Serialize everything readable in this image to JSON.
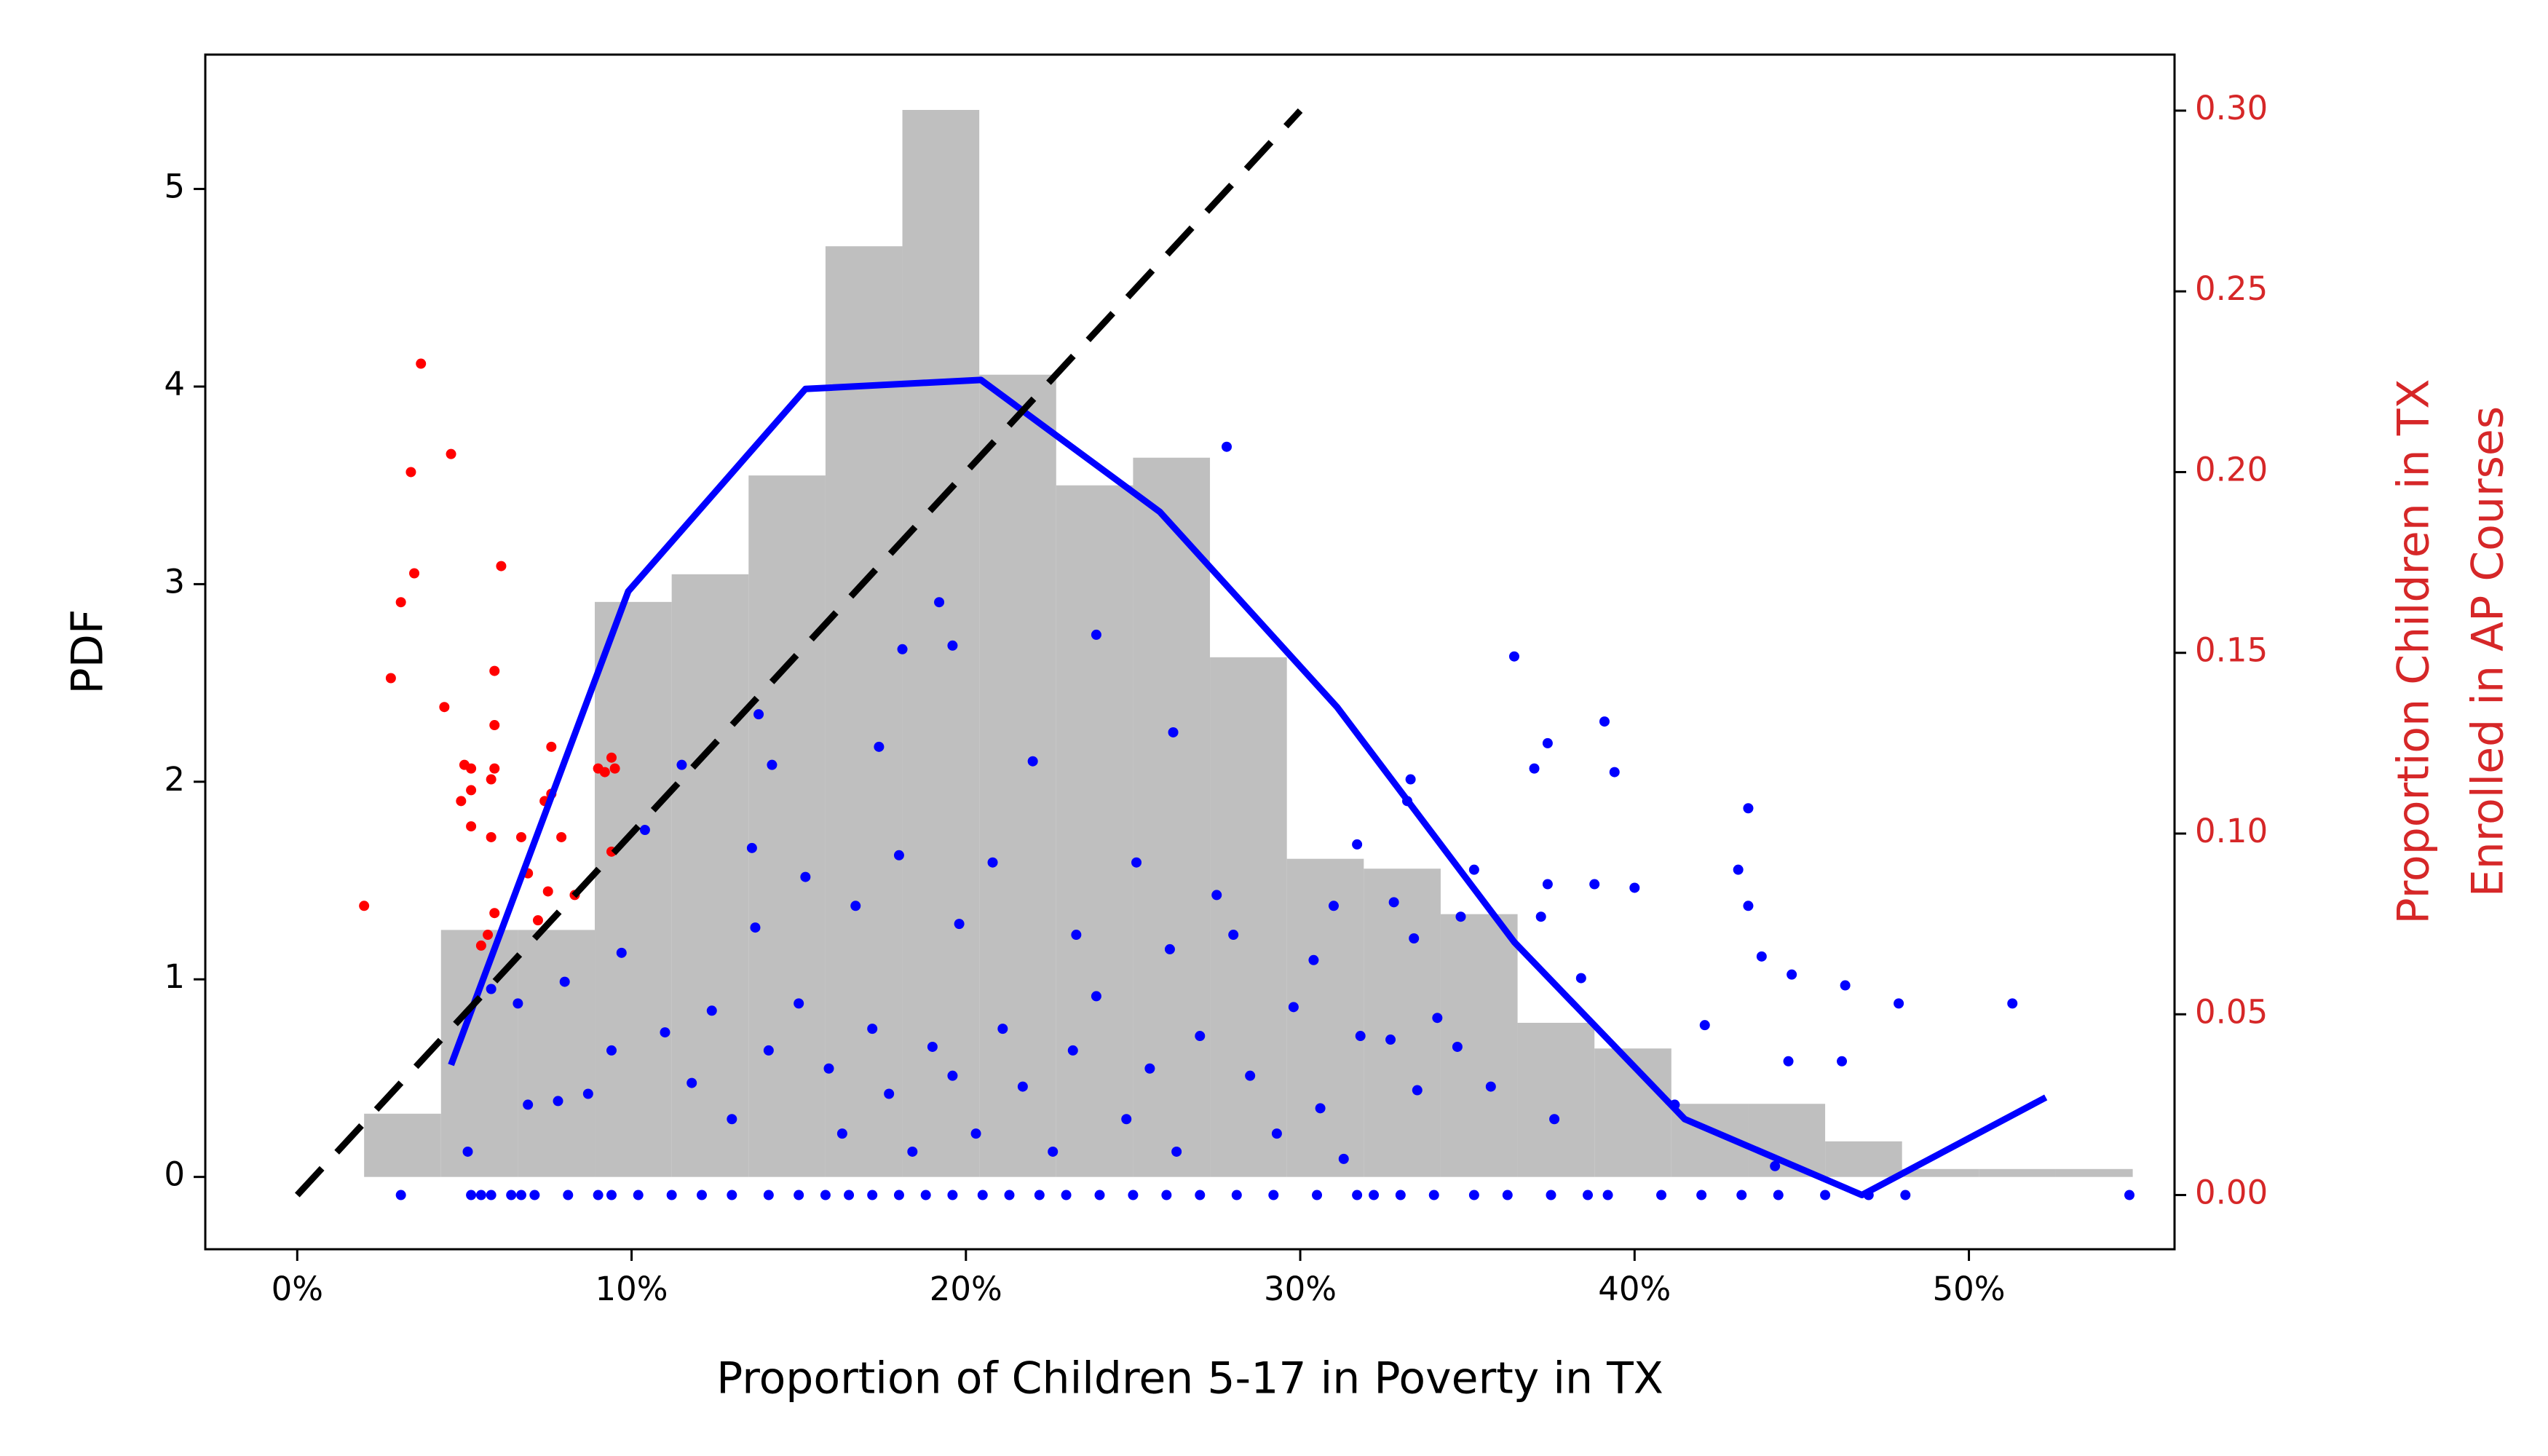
{
  "chart_data": {
    "type": "histogram",
    "xlabel": "Proportion of Children 5-17 in Poverty in TX",
    "ylabel": "PDF",
    "y2label": [
      "Proportion Children in TX",
      "Enrolled in AP Courses"
    ],
    "y2color": "#d62728",
    "xlim": [
      -0.0275,
      0.5615
    ],
    "ylim": [
      -0.366,
      5.68
    ],
    "y2lim": [
      -0.015,
      0.3155
    ],
    "xticks": [
      {
        "value": 0,
        "label": "0%"
      },
      {
        "value": 0.1,
        "label": "10%"
      },
      {
        "value": 0.2,
        "label": "20%"
      },
      {
        "value": 0.3,
        "label": "30%"
      },
      {
        "value": 0.4,
        "label": "40%"
      },
      {
        "value": 0.5,
        "label": "50%"
      }
    ],
    "yticks": [
      0,
      1,
      2,
      3,
      4,
      5
    ],
    "y2ticks": [
      {
        "value": 0,
        "label": "0.00"
      },
      0.05,
      {
        "value": 0.1,
        "label": "0.10"
      },
      0.15,
      {
        "value": 0.2,
        "label": "0.20"
      },
      0.25,
      {
        "value": 0.3,
        "label": "0.30"
      }
    ],
    "color": "#bfbfbf",
    "bins": [
      0.02,
      0.043,
      0.066,
      0.089,
      0.112,
      0.135,
      0.158,
      0.181,
      0.204,
      0.227,
      0.25,
      0.273,
      0.296,
      0.319,
      0.342,
      0.365,
      0.388,
      0.411,
      0.434,
      0.457,
      0.48,
      0.503,
      0.526,
      0.549
    ],
    "counts": [
      0.32,
      1.25,
      1.25,
      2.91,
      3.05,
      3.55,
      4.71,
      5.4,
      4.06,
      3.5,
      3.64,
      2.63,
      1.61,
      1.56,
      1.33,
      0.78,
      0.65,
      0.37,
      0.37,
      0.18,
      0.04,
      0.04,
      0.04
    ],
    "series": [
      {
        "type": "scatter",
        "color": "#ff0000",
        "axis": "y2",
        "x": [
          0.02,
          0.037,
          0.046,
          0.034,
          0.035,
          0.031,
          0.028,
          0.044,
          0.061,
          0.059,
          0.059,
          0.052,
          0.059,
          0.058,
          0.05,
          0.052,
          0.052,
          0.049,
          0.058,
          0.067,
          0.076,
          0.074,
          0.076,
          0.079,
          0.09,
          0.094,
          0.092,
          0.095,
          0.094,
          0.075,
          0.069,
          0.059,
          0.057,
          0.055,
          0.072,
          0.083
        ],
        "values": [
          0.08,
          0.23,
          0.205,
          0.2,
          0.172,
          0.164,
          0.143,
          0.135,
          0.174,
          0.145,
          0.13,
          0.118,
          0.118,
          0.115,
          0.119,
          0.112,
          0.102,
          0.109,
          0.099,
          0.099,
          0.111,
          0.109,
          0.124,
          0.099,
          0.118,
          0.121,
          0.117,
          0.118,
          0.095,
          0.084,
          0.089,
          0.078,
          0.072,
          0.069,
          0.076,
          0.083
        ]
      },
      {
        "type": "scatter",
        "color": "#0000ff",
        "axis": "y2",
        "x": [
          0.278,
          0.192,
          0.196,
          0.181,
          0.239,
          0.364,
          0.391,
          0.374,
          0.37,
          0.394,
          0.262,
          0.174,
          0.22,
          0.142,
          0.138,
          0.333,
          0.332,
          0.434,
          0.104,
          0.115,
          0.136,
          0.317,
          0.18,
          0.208,
          0.251,
          0.352,
          0.374,
          0.388,
          0.4,
          0.431,
          0.434,
          0.152,
          0.167,
          0.275,
          0.31,
          0.328,
          0.348,
          0.372,
          0.28,
          0.261,
          0.233,
          0.198,
          0.137,
          0.097,
          0.08,
          0.304,
          0.334,
          0.357,
          0.438,
          0.384,
          0.447,
          0.463,
          0.479,
          0.513,
          0.421,
          0.446,
          0.462,
          0.412,
          0.442,
          0.376,
          0.335,
          0.318,
          0.327,
          0.341,
          0.347,
          0.066,
          0.058,
          0.051,
          0.069,
          0.078,
          0.087,
          0.11,
          0.118,
          0.124,
          0.13,
          0.141,
          0.15,
          0.159,
          0.163,
          0.172,
          0.177,
          0.184,
          0.19,
          0.196,
          0.203,
          0.211,
          0.217,
          0.226,
          0.232,
          0.239,
          0.248,
          0.255,
          0.263,
          0.27,
          0.285,
          0.293,
          0.298,
          0.306,
          0.313,
          0.094
        ],
        "values": [
          0.207,
          0.164,
          0.152,
          0.151,
          0.155,
          0.149,
          0.131,
          0.125,
          0.118,
          0.117,
          0.128,
          0.124,
          0.12,
          0.119,
          0.133,
          0.115,
          0.109,
          0.107,
          0.101,
          0.119,
          0.096,
          0.097,
          0.094,
          0.092,
          0.092,
          0.09,
          0.086,
          0.086,
          0.085,
          0.09,
          0.08,
          0.088,
          0.08,
          0.083,
          0.08,
          0.081,
          0.077,
          0.077,
          0.072,
          0.068,
          0.072,
          0.075,
          0.074,
          0.067,
          0.059,
          0.065,
          0.071,
          0.03,
          0.066,
          0.06,
          0.061,
          0.058,
          0.053,
          0.053,
          0.047,
          0.037,
          0.037,
          0.025,
          0.008,
          0.021,
          0.029,
          0.044,
          0.043,
          0.049,
          0.041,
          0.053,
          0.057,
          0.012,
          0.025,
          0.026,
          0.028,
          0.045,
          0.031,
          0.051,
          0.021,
          0.04,
          0.053,
          0.035,
          0.017,
          0.046,
          0.028,
          0.012,
          0.041,
          0.033,
          0.017,
          0.046,
          0.03,
          0.012,
          0.04,
          0.055,
          0.021,
          0.035,
          0.012,
          0.044,
          0.033,
          0.017,
          0.052,
          0.024,
          0.01,
          0.04
        ]
      },
      {
        "type": "scatter",
        "color": "#0000ff",
        "axis": "y2",
        "x": [
          0.031,
          0.052,
          0.055,
          0.058,
          0.064,
          0.067,
          0.071,
          0.081,
          0.09,
          0.094,
          0.102,
          0.112,
          0.121,
          0.13,
          0.141,
          0.15,
          0.158,
          0.165,
          0.172,
          0.18,
          0.188,
          0.196,
          0.205,
          0.213,
          0.222,
          0.23,
          0.24,
          0.25,
          0.26,
          0.27,
          0.281,
          0.292,
          0.305,
          0.317,
          0.322,
          0.33,
          0.34,
          0.352,
          0.362,
          0.375,
          0.386,
          0.392,
          0.408,
          0.42,
          0.432,
          0.443,
          0.457,
          0.47,
          0.481,
          0.548
        ],
        "values": [
          0,
          0,
          0,
          0,
          0,
          0,
          0,
          0,
          0,
          0,
          0,
          0,
          0,
          0,
          0,
          0,
          0,
          0,
          0,
          0,
          0,
          0,
          0,
          0,
          0,
          0,
          0,
          0,
          0,
          0,
          0,
          0,
          0,
          0,
          0,
          0,
          0,
          0,
          0,
          0,
          0,
          0,
          0,
          0,
          0,
          0,
          0,
          0,
          0,
          0
        ]
      },
      {
        "type": "line",
        "color": "#0000ff",
        "axis": "y2",
        "x": [
          0.046,
          0.099,
          0.152,
          0.2045,
          0.258,
          0.311,
          0.364,
          0.415,
          0.468,
          0.523
        ],
        "values": [
          0.036,
          0.167,
          0.223,
          0.2255,
          0.189,
          0.135,
          0.07,
          0.021,
          0.0,
          0.027
        ]
      },
      {
        "type": "line",
        "dashed": true,
        "color": "#000000",
        "axis": "y2",
        "x": [
          0,
          0.3
        ],
        "values": [
          0,
          0.3
        ]
      }
    ]
  }
}
